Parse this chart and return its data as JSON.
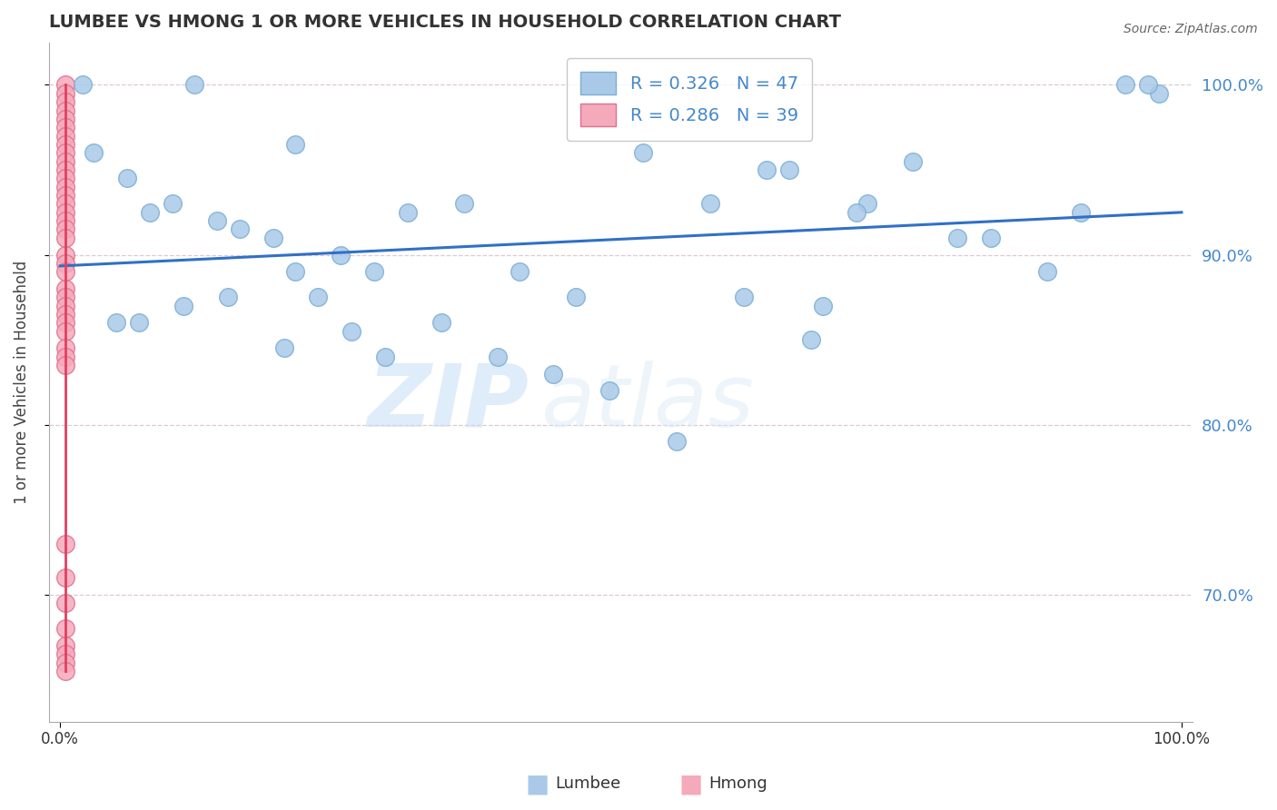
{
  "title": "LUMBEE VS HMONG 1 OR MORE VEHICLES IN HOUSEHOLD CORRELATION CHART",
  "source": "Source: ZipAtlas.com",
  "ylabel": "1 or more Vehicles in Household",
  "ytick_labels": [
    "70.0%",
    "80.0%",
    "90.0%",
    "100.0%"
  ],
  "ytick_values": [
    0.7,
    0.8,
    0.9,
    1.0
  ],
  "xlim": [
    -0.01,
    1.01
  ],
  "ylim": [
    0.625,
    1.025
  ],
  "lumbee_R": 0.326,
  "lumbee_N": 47,
  "hmong_R": 0.286,
  "hmong_N": 39,
  "lumbee_color": "#aac9e8",
  "lumbee_edge": "#7aafd4",
  "hmong_color": "#f5aabb",
  "hmong_edge": "#e07090",
  "trend_lumbee_color": "#3070c8",
  "trend_hmong_color": "#e04060",
  "watermark_zip": "ZIP",
  "watermark_atlas": "atlas",
  "lumbee_x": [
    0.02,
    0.12,
    0.21,
    0.03,
    0.06,
    0.08,
    0.1,
    0.14,
    0.16,
    0.19,
    0.21,
    0.25,
    0.28,
    0.31,
    0.36,
    0.41,
    0.46,
    0.52,
    0.58,
    0.63,
    0.65,
    0.68,
    0.72,
    0.8,
    0.88,
    0.95,
    0.98,
    0.05,
    0.07,
    0.11,
    0.15,
    0.2,
    0.23,
    0.26,
    0.29,
    0.34,
    0.39,
    0.44,
    0.49,
    0.55,
    0.61,
    0.67,
    0.71,
    0.76,
    0.83,
    0.91,
    0.97
  ],
  "lumbee_y": [
    1.0,
    1.0,
    0.965,
    0.96,
    0.945,
    0.925,
    0.93,
    0.92,
    0.915,
    0.91,
    0.89,
    0.9,
    0.89,
    0.925,
    0.93,
    0.89,
    0.875,
    0.96,
    0.93,
    0.95,
    0.95,
    0.87,
    0.93,
    0.91,
    0.89,
    1.0,
    0.995,
    0.86,
    0.86,
    0.87,
    0.875,
    0.845,
    0.875,
    0.855,
    0.84,
    0.86,
    0.84,
    0.83,
    0.82,
    0.79,
    0.875,
    0.85,
    0.925,
    0.955,
    0.91,
    0.925,
    1.0
  ],
  "hmong_x": [
    0.005,
    0.005,
    0.005,
    0.005,
    0.005,
    0.005,
    0.005,
    0.005,
    0.005,
    0.005,
    0.005,
    0.005,
    0.005,
    0.005,
    0.005,
    0.005,
    0.005,
    0.005,
    0.005,
    0.005,
    0.005,
    0.005,
    0.005,
    0.005,
    0.005,
    0.005,
    0.005,
    0.005,
    0.005,
    0.005,
    0.005,
    0.005,
    0.005,
    0.005,
    0.005,
    0.005,
    0.005,
    0.005,
    0.005
  ],
  "hmong_y": [
    1.0,
    0.995,
    0.99,
    0.985,
    0.98,
    0.975,
    0.97,
    0.965,
    0.96,
    0.955,
    0.95,
    0.945,
    0.94,
    0.935,
    0.93,
    0.925,
    0.92,
    0.915,
    0.91,
    0.9,
    0.895,
    0.89,
    0.88,
    0.875,
    0.87,
    0.865,
    0.86,
    0.855,
    0.845,
    0.84,
    0.835,
    0.73,
    0.71,
    0.695,
    0.68,
    0.67,
    0.665,
    0.66,
    0.655
  ]
}
